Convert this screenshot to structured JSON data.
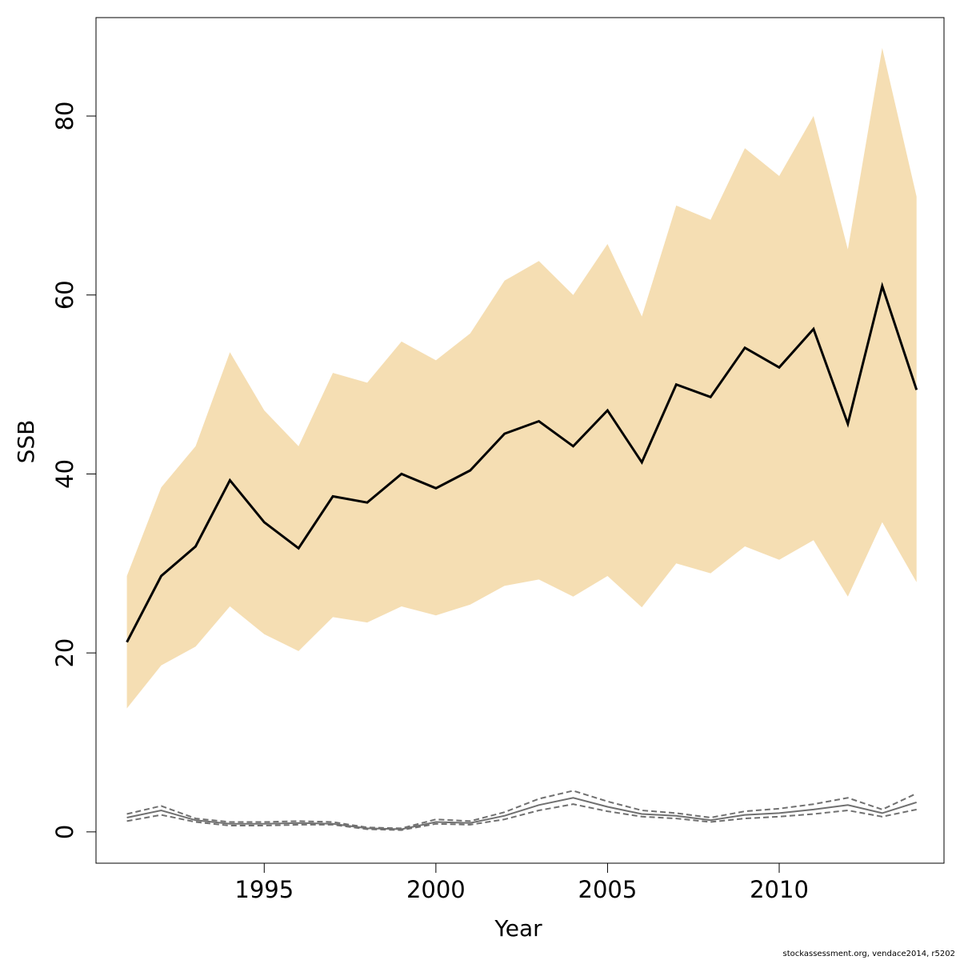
{
  "chart_data": {
    "type": "area",
    "xlabel": "Year",
    "ylabel": "SSB",
    "xlim": [
      1990.1,
      2014.8
    ],
    "ylim": [
      -3.5,
      91
    ],
    "x_ticks": [
      1995,
      2000,
      2005,
      2010
    ],
    "y_ticks": [
      0,
      20,
      40,
      60,
      80
    ],
    "grid": false,
    "colors": {
      "band": "#f5deb3",
      "estimate": "#000000",
      "secondary": "#707070"
    },
    "years": [
      1991,
      1992,
      1993,
      1994,
      1995,
      1996,
      1997,
      1998,
      1999,
      2000,
      2001,
      2002,
      2003,
      2004,
      2005,
      2006,
      2007,
      2008,
      2009,
      2010,
      2011,
      2012,
      2013,
      2014
    ],
    "series": [
      {
        "role": "ssb",
        "values": [
          21.2,
          28.6,
          31.9,
          39.3,
          34.6,
          31.7,
          37.5,
          36.8,
          40.0,
          38.4,
          40.4,
          44.5,
          45.9,
          43.1,
          47.1,
          41.3,
          50.0,
          48.6,
          54.1,
          51.9,
          56.2,
          45.6,
          61.0,
          49.4
        ]
      },
      {
        "role": "ssb_lower",
        "values": [
          13.8,
          18.6,
          20.7,
          25.2,
          22.1,
          20.2,
          24.0,
          23.4,
          25.2,
          24.2,
          25.4,
          27.5,
          28.2,
          26.3,
          28.6,
          25.1,
          30.0,
          28.9,
          31.9,
          30.4,
          32.6,
          26.3,
          34.6,
          27.9
        ]
      },
      {
        "role": "ssb_upper",
        "values": [
          28.6,
          38.5,
          43.1,
          53.6,
          47.1,
          43.1,
          51.3,
          50.2,
          54.8,
          52.7,
          55.7,
          61.6,
          63.8,
          60.0,
          65.7,
          57.6,
          70.0,
          68.4,
          76.4,
          73.3,
          80.0,
          65.1,
          87.6,
          71.0
        ]
      },
      {
        "role": "secondary_estimate",
        "values": [
          1.6,
          2.4,
          1.3,
          0.9,
          0.9,
          1.0,
          0.9,
          0.4,
          0.3,
          1.1,
          1.0,
          1.8,
          3.0,
          3.8,
          2.8,
          2.0,
          1.8,
          1.3,
          1.9,
          2.1,
          2.5,
          3.0,
          2.1,
          3.3
        ]
      },
      {
        "role": "secondary_lower",
        "values": [
          1.2,
          1.9,
          1.1,
          0.7,
          0.7,
          0.8,
          0.8,
          0.3,
          0.2,
          0.9,
          0.8,
          1.4,
          2.4,
          3.1,
          2.3,
          1.7,
          1.5,
          1.1,
          1.5,
          1.7,
          2.0,
          2.4,
          1.7,
          2.5
        ]
      },
      {
        "role": "secondary_upper",
        "values": [
          2.0,
          2.9,
          1.5,
          1.1,
          1.1,
          1.2,
          1.1,
          0.5,
          0.4,
          1.4,
          1.2,
          2.2,
          3.7,
          4.6,
          3.4,
          2.4,
          2.1,
          1.6,
          2.3,
          2.6,
          3.1,
          3.8,
          2.5,
          4.3
        ]
      }
    ]
  },
  "credit": "stockassessment.org, vendace2014, r5202"
}
